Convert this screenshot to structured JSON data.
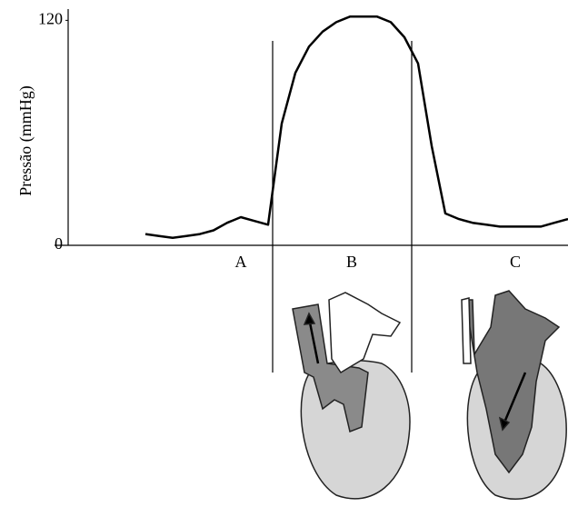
{
  "chart_data": {
    "type": "line",
    "y_label": "Pressão (mmHg)",
    "categories": [
      null,
      null,
      null,
      null,
      null,
      null,
      null,
      null,
      null,
      null,
      null,
      null,
      null,
      null,
      null,
      null,
      null,
      null,
      null,
      null,
      null,
      null,
      null,
      null,
      null,
      null,
      null,
      null,
      null,
      null,
      null,
      null
    ],
    "values": [
      6,
      5,
      4,
      5,
      6,
      8,
      12,
      15,
      13,
      11,
      65,
      92,
      106,
      114,
      119,
      122,
      122,
      122,
      119,
      111,
      97,
      53,
      17,
      14,
      12,
      11,
      10,
      10,
      10,
      10,
      12,
      14
    ],
    "color": "#000000",
    "ylim": [
      0,
      126
    ],
    "yticks": [
      0,
      120
    ],
    "phases": [
      "A",
      "B",
      "C"
    ]
  }
}
